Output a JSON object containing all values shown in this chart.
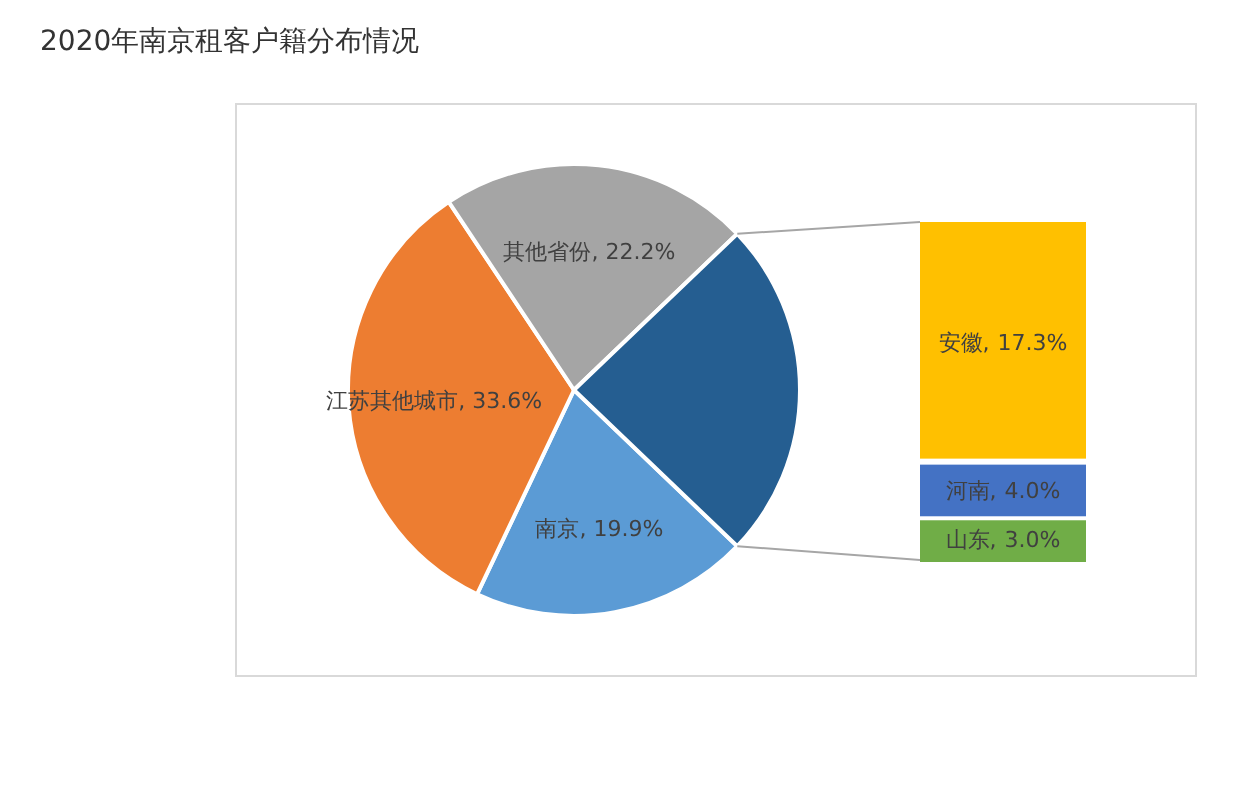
{
  "chart_data": [
    {
      "type": "pie",
      "title": "2020年南京租客户籍分布情况",
      "categories": [
        "南京",
        "江苏其他城市",
        "其他省份",
        null
      ],
      "values": [
        19.9,
        33.6,
        22.2,
        24.3
      ],
      "colors": [
        "#5b9bd5",
        "#ed7d31",
        "#a5a5a5",
        "#255e91"
      ],
      "value_labels": [
        "19.9%",
        "33.6%",
        "22.2%",
        null
      ]
    },
    {
      "type": "bar",
      "stacked": true,
      "categories": [
        null
      ],
      "series": [
        {
          "name": "山东,",
          "color": "#70ad47",
          "values": [
            3.0
          ],
          "value_labels": [
            "3.0%"
          ]
        },
        {
          "name": "河南,",
          "color": "#4472c4",
          "values": [
            4.0
          ],
          "value_labels": [
            "4.0%"
          ]
        },
        {
          "name": "安徽,",
          "color": "#ffc000",
          "values": [
            17.3
          ],
          "value_labels": [
            "17.3%"
          ]
        }
      ]
    }
  ]
}
